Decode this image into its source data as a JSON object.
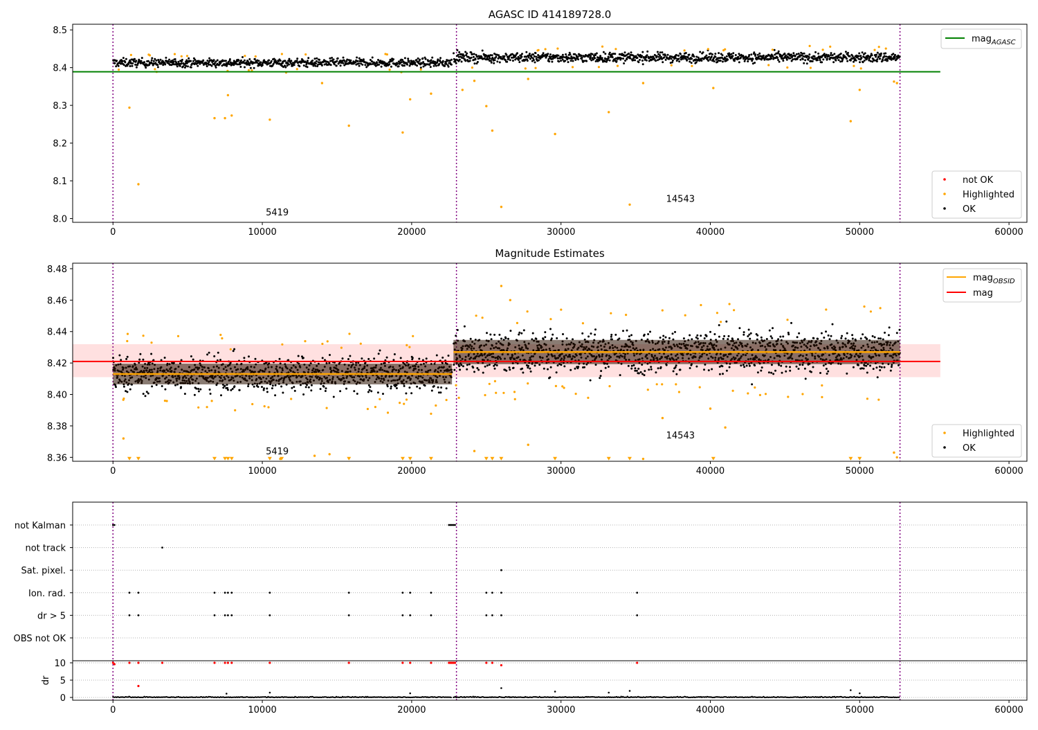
{
  "figure": {
    "note_span_1": "5419",
    "note_span_2": "14543"
  },
  "chart_data": [
    {
      "id": "top",
      "type": "scatter",
      "title": "AGASC ID 414189728.0",
      "xlim": [
        -2700,
        61200
      ],
      "ylim": [
        7.99,
        8.515
      ],
      "xticks": [
        0,
        10000,
        20000,
        30000,
        40000,
        50000,
        60000
      ],
      "yticks": [
        8.0,
        8.1,
        8.2,
        8.3,
        8.4,
        8.5
      ],
      "ytick_decimals": 1,
      "grid": false,
      "obs_boundaries": [
        0,
        23000,
        52700
      ],
      "segments": [
        {
          "x_start": 0,
          "x_end": 22700,
          "ok_center": 8.413,
          "ok_halfwidth": 0.012
        },
        {
          "x_start": 22800,
          "x_end": 52700,
          "ok_center": 8.427,
          "ok_halfwidth": 0.014
        }
      ],
      "lines": [
        {
          "name": "mag",
          "subscript": "AGASC",
          "y": 8.389,
          "x_start": -2700,
          "x_end": 55400,
          "color": "#008000"
        }
      ],
      "highlighted_outliers": [
        {
          "x": 1100,
          "y": 8.294
        },
        {
          "x": 1700,
          "y": 8.091
        },
        {
          "x": 6800,
          "y": 8.266
        },
        {
          "x": 7500,
          "y": 8.266
        },
        {
          "x": 7700,
          "y": 8.327
        },
        {
          "x": 7950,
          "y": 8.273
        },
        {
          "x": 10500,
          "y": 8.262
        },
        {
          "x": 14000,
          "y": 8.359
        },
        {
          "x": 15800,
          "y": 8.246
        },
        {
          "x": 19400,
          "y": 8.228
        },
        {
          "x": 19900,
          "y": 8.316
        },
        {
          "x": 21300,
          "y": 8.331
        },
        {
          "x": 23400,
          "y": 8.341
        },
        {
          "x": 24200,
          "y": 8.365
        },
        {
          "x": 25000,
          "y": 8.298
        },
        {
          "x": 25400,
          "y": 8.233
        },
        {
          "x": 26000,
          "y": 8.031
        },
        {
          "x": 27800,
          "y": 8.37
        },
        {
          "x": 29600,
          "y": 8.224
        },
        {
          "x": 33200,
          "y": 8.282
        },
        {
          "x": 34600,
          "y": 8.037
        },
        {
          "x": 35500,
          "y": 8.359
        },
        {
          "x": 40200,
          "y": 8.346
        },
        {
          "x": 49400,
          "y": 8.258
        },
        {
          "x": 50000,
          "y": 8.341
        },
        {
          "x": 52300,
          "y": 8.363
        },
        {
          "x": 52500,
          "y": 8.359
        }
      ],
      "span_labels": [
        {
          "text": "5419",
          "x": 11000,
          "y": 8.008
        },
        {
          "text": "14543",
          "x": 38000,
          "y": 8.044
        }
      ],
      "legend_lines": [
        {
          "label": "mag",
          "subscript": "AGASC",
          "color": "#008000"
        }
      ],
      "legend_markers": [
        {
          "label": "not OK",
          "color": "#ff0000"
        },
        {
          "label": "Highlighted",
          "color": "#ffa500"
        },
        {
          "label": "OK",
          "color": "#000000"
        }
      ]
    },
    {
      "id": "mid",
      "type": "scatter",
      "title": "Magnitude Estimates",
      "xlim": [
        -2700,
        61200
      ],
      "ylim": [
        8.3575,
        8.4835
      ],
      "xticks": [
        0,
        10000,
        20000,
        30000,
        40000,
        50000,
        60000
      ],
      "yticks": [
        8.36,
        8.38,
        8.4,
        8.42,
        8.44,
        8.46,
        8.48
      ],
      "ytick_decimals": 2,
      "grid": false,
      "obs_boundaries": [
        0,
        23000,
        52700
      ],
      "segments": [
        {
          "x_start": 0,
          "x_end": 22700,
          "ok_center": 8.413,
          "ok_halfwidth": 0.012,
          "mag_obsid": 8.413
        },
        {
          "x_start": 22800,
          "x_end": 52700,
          "ok_center": 8.427,
          "ok_halfwidth": 0.014,
          "mag_obsid": 8.427
        }
      ],
      "band": {
        "y_low": 8.411,
        "y_high": 8.432,
        "x_start": -2700,
        "x_end": 55400,
        "color": "#ffcccc"
      },
      "lines": [
        {
          "name": "mag",
          "subscript": "",
          "y": 8.421,
          "x_start": -2700,
          "x_end": 55400,
          "color": "#ff0000"
        }
      ],
      "clipped_markers_y": 8.3585,
      "clipped_markers_x": [
        1100,
        1700,
        6800,
        7500,
        7700,
        7950,
        10500,
        11300,
        15800,
        19400,
        19900,
        21300,
        25000,
        25400,
        26000,
        29600,
        33200,
        34600,
        40200,
        49400,
        50000
      ],
      "highlighted_outliers": [
        {
          "x": 700,
          "y": 8.372
        },
        {
          "x": 11200,
          "y": 8.359
        },
        {
          "x": 13500,
          "y": 8.361
        },
        {
          "x": 14500,
          "y": 8.362
        },
        {
          "x": 24200,
          "y": 8.364
        },
        {
          "x": 26000,
          "y": 8.469
        },
        {
          "x": 26600,
          "y": 8.46
        },
        {
          "x": 27800,
          "y": 8.368
        },
        {
          "x": 36800,
          "y": 8.385
        },
        {
          "x": 41000,
          "y": 8.379
        },
        {
          "x": 52300,
          "y": 8.363
        },
        {
          "x": 52500,
          "y": 8.36
        },
        {
          "x": 40000,
          "y": 8.391
        },
        {
          "x": 35500,
          "y": 8.359
        }
      ],
      "span_labels": [
        {
          "text": "5419",
          "x": 11000,
          "y": 8.362
        },
        {
          "text": "14543",
          "x": 38000,
          "y": 8.372
        }
      ],
      "legend_lines": [
        {
          "label": "mag",
          "subscript": "OBSID",
          "color": "#ffa500"
        },
        {
          "label": "mag",
          "subscript": "",
          "color": "#ff0000"
        }
      ],
      "legend_markers": [
        {
          "label": "Highlighted",
          "color": "#ffa500"
        },
        {
          "label": "OK",
          "color": "#000000"
        }
      ]
    },
    {
      "id": "flags",
      "type": "scatter",
      "xlim": [
        -2700,
        61200
      ],
      "categories": [
        "not Kalman",
        "not track",
        "Sat. pixel.",
        "Ion. rad.",
        "dr > 5",
        "OBS not OK"
      ],
      "grid": true,
      "obs_boundaries": [
        0,
        23000,
        52700
      ],
      "flag_points": {
        "not Kalman": [
          0,
          100,
          22500,
          22600,
          22700,
          22800,
          22900
        ],
        "not track": [
          3300
        ],
        "Sat. pixel.": [
          26000
        ],
        "Ion. rad.": [
          1100,
          1700,
          6800,
          7500,
          7700,
          7950,
          10500,
          15800,
          19400,
          19900,
          21300,
          25000,
          25400,
          26000,
          35100
        ],
        "dr > 5": [
          1100,
          1700,
          6800,
          7500,
          7700,
          7950,
          10500,
          15800,
          19400,
          19900,
          21300,
          25000,
          25400,
          26000,
          35100
        ],
        "OBS not OK": []
      }
    },
    {
      "id": "dr",
      "type": "scatter",
      "ylabel": "dr",
      "xlim": [
        -2700,
        61200
      ],
      "ylim": [
        -0.8,
        10.6
      ],
      "xticks": [
        0,
        10000,
        20000,
        30000,
        40000,
        50000,
        60000
      ],
      "yticks": [
        0,
        5,
        10
      ],
      "grid": true,
      "obs_boundaries": [
        0,
        23000,
        52700
      ],
      "notok_points": [
        {
          "x": 0,
          "y": 10
        },
        {
          "x": 100,
          "y": 9.6
        },
        {
          "x": 1100,
          "y": 10
        },
        {
          "x": 1700,
          "y": 10
        },
        {
          "x": 1700,
          "y": 3.3
        },
        {
          "x": 3300,
          "y": 10
        },
        {
          "x": 6800,
          "y": 10
        },
        {
          "x": 7500,
          "y": 10
        },
        {
          "x": 7700,
          "y": 10
        },
        {
          "x": 7950,
          "y": 10
        },
        {
          "x": 10500,
          "y": 10
        },
        {
          "x": 15800,
          "y": 10
        },
        {
          "x": 19400,
          "y": 10
        },
        {
          "x": 19900,
          "y": 10
        },
        {
          "x": 21300,
          "y": 10
        },
        {
          "x": 22500,
          "y": 10
        },
        {
          "x": 22600,
          "y": 10
        },
        {
          "x": 22700,
          "y": 10
        },
        {
          "x": 22800,
          "y": 10
        },
        {
          "x": 22900,
          "y": 10
        },
        {
          "x": 25000,
          "y": 10
        },
        {
          "x": 25400,
          "y": 10
        },
        {
          "x": 26000,
          "y": 9.3
        },
        {
          "x": 35100,
          "y": 10
        }
      ],
      "ok_outliers": [
        {
          "x": 7600,
          "y": 1.1
        },
        {
          "x": 10500,
          "y": 1.4
        },
        {
          "x": 19900,
          "y": 1.2
        },
        {
          "x": 26000,
          "y": 2.7
        },
        {
          "x": 29600,
          "y": 1.7
        },
        {
          "x": 33200,
          "y": 1.4
        },
        {
          "x": 34600,
          "y": 1.9
        },
        {
          "x": 49400,
          "y": 2.1
        },
        {
          "x": 50000,
          "y": 1.2
        }
      ]
    }
  ]
}
